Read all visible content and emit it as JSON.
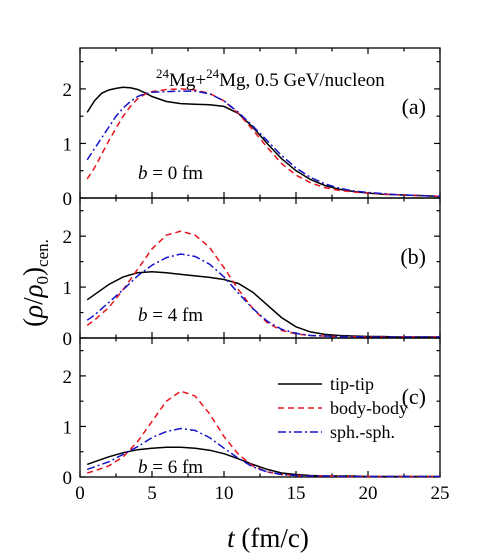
{
  "chart_data": {
    "type": "line",
    "title": "",
    "xlabel": "t (fm/c)",
    "ylabel": "(ρ/ρ0)cen.",
    "xlim": [
      0,
      25
    ],
    "ylim": [
      0,
      2.75
    ],
    "x_ticks": [
      0,
      5,
      10,
      15,
      20,
      25
    ],
    "y_ticks": [
      0,
      1,
      2
    ],
    "grid": false,
    "legend": {
      "placement": "panel (c), right",
      "entries": [
        "tip-tip",
        "body-body",
        "sph.-sph."
      ]
    },
    "colors": {
      "tip-tip": "#000000",
      "body-body": "#e8141e",
      "sph.-sph.": "#1414c8"
    },
    "annotations": {
      "system": "24Mg+24Mg, 0.5 GeV/nucleon"
    },
    "panels": [
      {
        "label": "(a)",
        "impact_parameter": "b = 0 fm",
        "series": [
          {
            "name": "tip-tip",
            "style": "solid",
            "x": [
              0.5,
              1,
              1.5,
              2,
              2.5,
              3,
              3.5,
              4,
              4.5,
              5,
              6,
              7,
              8,
              9,
              10,
              11,
              12,
              13,
              14,
              15,
              16,
              17,
              18,
              19,
              20,
              21,
              22,
              23,
              24,
              25
            ],
            "y": [
              1.57,
              1.78,
              1.92,
              1.98,
              2.01,
              2.03,
              2.02,
              1.99,
              1.93,
              1.86,
              1.77,
              1.73,
              1.72,
              1.71,
              1.68,
              1.55,
              1.3,
              1.0,
              0.72,
              0.5,
              0.34,
              0.23,
              0.16,
              0.12,
              0.09,
              0.07,
              0.06,
              0.05,
              0.04,
              0.03
            ]
          },
          {
            "name": "body-body",
            "style": "dashed",
            "x": [
              0.5,
              1,
              1.5,
              2,
              2.5,
              3,
              3.5,
              4,
              4.5,
              5,
              6,
              7,
              8,
              9,
              10,
              11,
              12,
              13,
              14,
              15,
              16,
              17,
              18,
              19,
              20,
              21,
              22,
              23,
              24,
              25
            ],
            "y": [
              0.35,
              0.55,
              0.8,
              1.05,
              1.28,
              1.5,
              1.68,
              1.82,
              1.9,
              1.95,
              1.99,
              2.0,
              1.98,
              1.92,
              1.78,
              1.55,
              1.25,
              0.93,
              0.63,
              0.42,
              0.28,
              0.19,
              0.14,
              0.11,
              0.09,
              0.07,
              0.06,
              0.05,
              0.04,
              0.03
            ]
          },
          {
            "name": "sph.-sph.",
            "style": "dashdot",
            "x": [
              0.5,
              1,
              1.5,
              2,
              2.5,
              3,
              3.5,
              4,
              4.5,
              5,
              6,
              7,
              8,
              9,
              10,
              11,
              12,
              13,
              14,
              15,
              16,
              17,
              18,
              19,
              20,
              21,
              22,
              23,
              24,
              25
            ],
            "y": [
              0.7,
              0.9,
              1.1,
              1.3,
              1.5,
              1.65,
              1.77,
              1.86,
              1.91,
              1.94,
              1.95,
              1.96,
              1.96,
              1.91,
              1.78,
              1.57,
              1.32,
              1.05,
              0.78,
              0.55,
              0.38,
              0.26,
              0.18,
              0.13,
              0.1,
              0.08,
              0.06,
              0.05,
              0.04,
              0.03
            ]
          }
        ]
      },
      {
        "label": "(b)",
        "impact_parameter": "b = 4 fm",
        "series": [
          {
            "name": "tip-tip",
            "style": "solid",
            "x": [
              0.5,
              1,
              2,
              3,
              4,
              5,
              6,
              7,
              8,
              9,
              10,
              11,
              12,
              13,
              14,
              15,
              16,
              17,
              18,
              19,
              20,
              21,
              22,
              23,
              24,
              25
            ],
            "y": [
              0.75,
              0.85,
              1.05,
              1.2,
              1.28,
              1.3,
              1.28,
              1.25,
              1.22,
              1.19,
              1.15,
              1.07,
              0.9,
              0.65,
              0.4,
              0.22,
              0.12,
              0.07,
              0.05,
              0.04,
              0.03,
              0.03,
              0.02,
              0.02,
              0.02,
              0.02
            ]
          },
          {
            "name": "body-body",
            "style": "dashed",
            "x": [
              0.5,
              1,
              2,
              3,
              4,
              5,
              6,
              7,
              8,
              9,
              10,
              11,
              12,
              13,
              14,
              15,
              16,
              17,
              18,
              19,
              20,
              21,
              22,
              23,
              24,
              25
            ],
            "y": [
              0.25,
              0.35,
              0.6,
              0.95,
              1.35,
              1.75,
              2.02,
              2.1,
              2.02,
              1.78,
              1.38,
              0.95,
              0.58,
              0.3,
              0.15,
              0.08,
              0.05,
              0.04,
              0.03,
              0.03,
              0.02,
              0.02,
              0.02,
              0.02,
              0.02,
              0.02
            ]
          },
          {
            "name": "sph.-sph.",
            "style": "dashdot",
            "x": [
              0.5,
              1,
              2,
              3,
              4,
              5,
              6,
              7,
              8,
              9,
              10,
              11,
              12,
              13,
              14,
              15,
              16,
              17,
              18,
              19,
              20,
              21,
              22,
              23,
              24,
              25
            ],
            "y": [
              0.35,
              0.45,
              0.7,
              0.95,
              1.22,
              1.43,
              1.58,
              1.65,
              1.6,
              1.45,
              1.2,
              0.88,
              0.58,
              0.33,
              0.17,
              0.09,
              0.05,
              0.04,
              0.03,
              0.03,
              0.02,
              0.02,
              0.02,
              0.02,
              0.02,
              0.02
            ]
          }
        ]
      },
      {
        "label": "(c)",
        "impact_parameter": "b = 6 fm",
        "series": [
          {
            "name": "tip-tip",
            "style": "solid",
            "x": [
              0.5,
              1,
              2,
              3,
              4,
              5,
              6,
              7,
              8,
              9,
              10,
              11,
              12,
              13,
              14,
              15,
              16,
              17,
              18,
              19,
              20,
              21,
              22,
              23,
              24,
              25
            ],
            "y": [
              0.25,
              0.3,
              0.4,
              0.48,
              0.54,
              0.57,
              0.59,
              0.59,
              0.57,
              0.53,
              0.46,
              0.36,
              0.25,
              0.15,
              0.08,
              0.05,
              0.03,
              0.02,
              0.02,
              0.02,
              0.01,
              0.01,
              0.01,
              0.01,
              0.01,
              0.01
            ]
          },
          {
            "name": "body-body",
            "style": "dashed",
            "x": [
              0.5,
              1,
              2,
              3,
              4,
              5,
              6,
              7,
              8,
              9,
              10,
              11,
              12,
              13,
              14,
              15,
              16,
              17,
              18,
              19,
              20,
              21,
              22,
              23,
              24,
              25
            ],
            "y": [
              0.08,
              0.12,
              0.22,
              0.4,
              0.7,
              1.1,
              1.5,
              1.7,
              1.6,
              1.25,
              0.8,
              0.45,
              0.22,
              0.1,
              0.05,
              0.03,
              0.02,
              0.02,
              0.01,
              0.01,
              0.01,
              0.01,
              0.01,
              0.01,
              0.01,
              0.01
            ]
          },
          {
            "name": "sph.-sph.",
            "style": "dashdot",
            "x": [
              0.5,
              1,
              2,
              3,
              4,
              5,
              6,
              7,
              8,
              9,
              10,
              11,
              12,
              13,
              14,
              15,
              16,
              17,
              18,
              19,
              20,
              21,
              22,
              23,
              24,
              25
            ],
            "y": [
              0.15,
              0.2,
              0.3,
              0.45,
              0.6,
              0.78,
              0.9,
              0.96,
              0.92,
              0.78,
              0.57,
              0.37,
              0.2,
              0.1,
              0.05,
              0.03,
              0.02,
              0.02,
              0.01,
              0.01,
              0.01,
              0.01,
              0.01,
              0.01,
              0.01,
              0.01
            ]
          }
        ]
      }
    ]
  }
}
